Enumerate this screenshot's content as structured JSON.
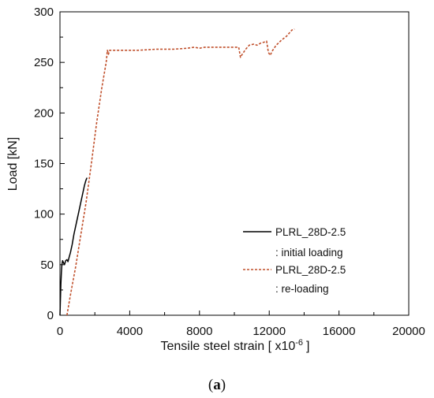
{
  "chart_data": {
    "type": "line",
    "title": "",
    "xlabel": "Tensile steel strain [ x10",
    "xlabel_exponent": "-6",
    "xlabel_suffix": "]",
    "ylabel": "Load [kN]",
    "xlim": [
      0,
      20000
    ],
    "ylim": [
      0,
      300
    ],
    "x_ticks": [
      0,
      4000,
      8000,
      12000,
      16000,
      20000
    ],
    "y_ticks": [
      0,
      50,
      100,
      150,
      200,
      250,
      300
    ],
    "grid": false,
    "legend_position": "lower-right",
    "series": [
      {
        "name": "PLRL_28D-2.5",
        "legend_note": ": initial loading",
        "style": "solid",
        "color": "#000000",
        "points": [
          [
            0,
            0
          ],
          [
            20,
            12
          ],
          [
            50,
            30
          ],
          [
            80,
            42
          ],
          [
            110,
            50
          ],
          [
            150,
            54
          ],
          [
            200,
            52
          ],
          [
            260,
            50
          ],
          [
            330,
            54
          ],
          [
            400,
            55
          ],
          [
            460,
            53
          ],
          [
            520,
            57
          ],
          [
            600,
            62
          ],
          [
            700,
            70
          ],
          [
            800,
            80
          ],
          [
            900,
            88
          ],
          [
            1000,
            96
          ],
          [
            1100,
            104
          ],
          [
            1200,
            112
          ],
          [
            1300,
            120
          ],
          [
            1400,
            128
          ],
          [
            1480,
            133
          ],
          [
            1550,
            136
          ]
        ]
      },
      {
        "name": "PLRL_28D-2.5",
        "legend_note": ": re-loading",
        "style": "dashed",
        "color": "#c0502c",
        "points": [
          [
            400,
            0
          ],
          [
            600,
            20
          ],
          [
            900,
            48
          ],
          [
            1200,
            80
          ],
          [
            1500,
            112
          ],
          [
            1800,
            150
          ],
          [
            2100,
            190
          ],
          [
            2400,
            225
          ],
          [
            2650,
            250
          ],
          [
            2720,
            262
          ],
          [
            2780,
            258
          ],
          [
            2850,
            262
          ],
          [
            3500,
            262
          ],
          [
            4500,
            262
          ],
          [
            5500,
            263
          ],
          [
            6500,
            263
          ],
          [
            7300,
            264
          ],
          [
            7700,
            265
          ],
          [
            8000,
            264
          ],
          [
            8300,
            265
          ],
          [
            9000,
            265
          ],
          [
            10000,
            265
          ],
          [
            10250,
            265
          ],
          [
            10350,
            255
          ],
          [
            10450,
            258
          ],
          [
            10650,
            263
          ],
          [
            10850,
            267
          ],
          [
            11100,
            268
          ],
          [
            11300,
            267
          ],
          [
            11500,
            269
          ],
          [
            11700,
            270
          ],
          [
            11850,
            271
          ],
          [
            11950,
            260
          ],
          [
            12050,
            257
          ],
          [
            12200,
            262
          ],
          [
            12400,
            267
          ],
          [
            12700,
            272
          ],
          [
            13000,
            276
          ],
          [
            13300,
            282
          ],
          [
            13450,
            283
          ]
        ]
      }
    ]
  },
  "caption": {
    "open": "(",
    "letter": "a",
    "close": ")"
  }
}
